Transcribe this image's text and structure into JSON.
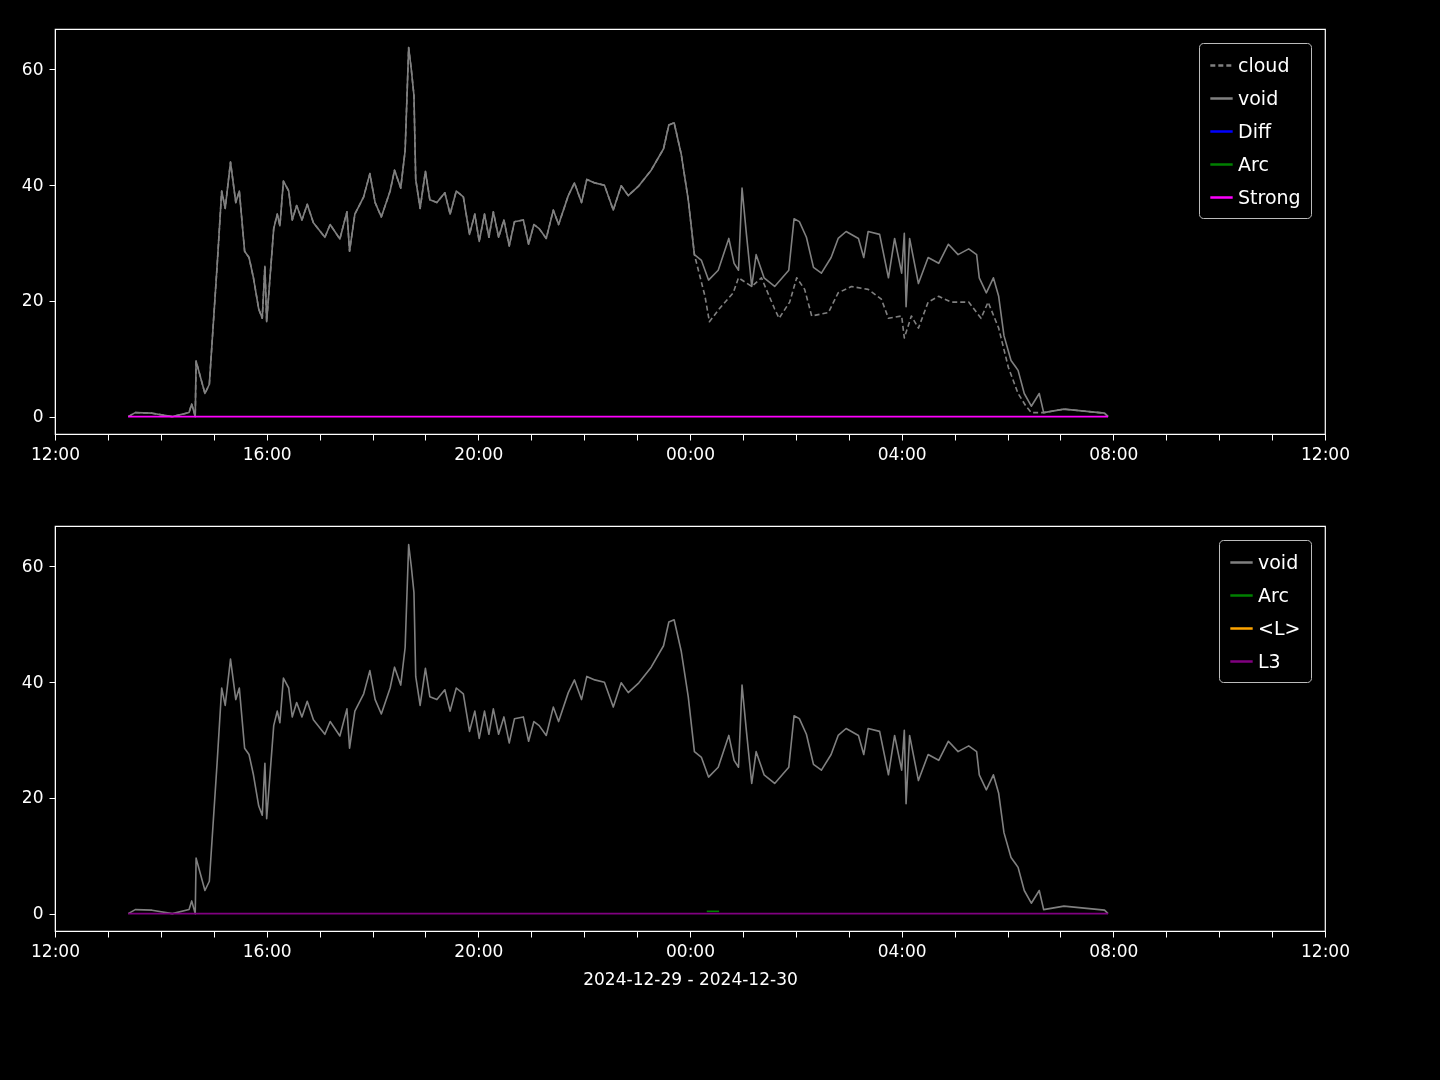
{
  "chart_data": [
    {
      "type": "line",
      "legend": "top right",
      "ylim": [
        -3,
        67
      ],
      "yticks": [
        0,
        20,
        40,
        60
      ],
      "xlim": [
        "2024-12-29T12:00",
        "2024-12-30T12:00"
      ],
      "xticks": [
        {
          "value": "2024-12-29T12:00",
          "label": "12:00"
        },
        {
          "value": "2024-12-29T13:00",
          "label": null
        },
        {
          "value": "2024-12-29T14:00",
          "label": null
        },
        {
          "value": "2024-12-29T15:00",
          "label": null
        },
        {
          "value": "2024-12-29T16:00",
          "label": "16:00"
        },
        {
          "value": "2024-12-29T17:00",
          "label": null
        },
        {
          "value": "2024-12-29T18:00",
          "label": null
        },
        {
          "value": "2024-12-29T19:00",
          "label": null
        },
        {
          "value": "2024-12-29T20:00",
          "label": "20:00"
        },
        {
          "value": "2024-12-29T21:00",
          "label": null
        },
        {
          "value": "2024-12-29T22:00",
          "label": null
        },
        {
          "value": "2024-12-29T23:00",
          "label": null
        },
        {
          "value": "2024-12-30T00:00",
          "label": "00:00"
        },
        {
          "value": "2024-12-30T01:00",
          "label": null
        },
        {
          "value": "2024-12-30T02:00",
          "label": null
        },
        {
          "value": "2024-12-30T03:00",
          "label": null
        },
        {
          "value": "2024-12-30T04:00",
          "label": "04:00"
        },
        {
          "value": "2024-12-30T05:00",
          "label": null
        },
        {
          "value": "2024-12-30T06:00",
          "label": null
        },
        {
          "value": "2024-12-30T07:00",
          "label": null
        },
        {
          "value": "2024-12-30T08:00",
          "label": "08:00"
        },
        {
          "value": "2024-12-30T09:00",
          "label": null
        },
        {
          "value": "2024-12-30T10:00",
          "label": null
        },
        {
          "value": "2024-12-30T11:00",
          "label": null
        },
        {
          "value": "2024-12-30T12:00",
          "label": "12:00"
        }
      ],
      "series": [
        {
          "name": "cloud",
          "color": "#808080",
          "line_style": "dashed",
          "x": [
            "2024-12-29T13:23",
            "2024-12-29T13:31",
            "2024-12-29T13:50",
            "2024-12-29T14:13",
            "2024-12-29T14:32",
            "2024-12-29T14:35",
            "2024-12-29T14:39",
            "2024-12-29T14:40",
            "2024-12-29T14:50",
            "2024-12-29T14:55",
            "2024-12-29T15:04",
            "2024-12-29T15:09",
            "2024-12-29T15:13",
            "2024-12-29T15:19",
            "2024-12-29T15:25",
            "2024-12-29T15:29",
            "2024-12-29T15:35",
            "2024-12-29T15:40",
            "2024-12-29T15:45",
            "2024-12-29T15:51",
            "2024-12-29T15:55",
            "2024-12-29T15:58",
            "2024-12-29T16:00",
            "2024-12-29T16:08",
            "2024-12-29T16:12",
            "2024-12-29T16:15",
            "2024-12-29T16:19",
            "2024-12-29T16:25",
            "2024-12-29T16:29",
            "2024-12-29T16:34",
            "2024-12-29T16:40",
            "2024-12-29T16:46",
            "2024-12-29T16:53",
            "2024-12-29T17:06",
            "2024-12-29T17:12",
            "2024-12-29T17:23",
            "2024-12-29T17:31",
            "2024-12-29T17:34",
            "2024-12-29T17:40",
            "2024-12-29T17:50",
            "2024-12-29T17:57",
            "2024-12-29T18:03",
            "2024-12-29T18:10",
            "2024-12-29T18:20",
            "2024-12-29T18:25",
            "2024-12-29T18:32",
            "2024-12-29T18:37",
            "2024-12-29T18:41",
            "2024-12-29T18:44",
            "2024-12-29T18:47",
            "2024-12-29T18:49",
            "2024-12-29T18:54",
            "2024-12-29T19:00",
            "2024-12-29T19:05",
            "2024-12-29T19:13",
            "2024-12-29T19:22",
            "2024-12-29T19:28",
            "2024-12-29T19:35",
            "2024-12-29T19:43",
            "2024-12-29T19:50",
            "2024-12-29T19:56",
            "2024-12-29T20:01",
            "2024-12-29T20:07",
            "2024-12-29T20:12",
            "2024-12-29T20:17",
            "2024-12-29T20:23",
            "2024-12-29T20:29",
            "2024-12-29T20:35",
            "2024-12-29T20:41",
            "2024-12-29T20:51",
            "2024-12-29T20:57",
            "2024-12-29T21:03",
            "2024-12-29T21:09",
            "2024-12-29T21:17",
            "2024-12-29T21:25",
            "2024-12-29T21:31",
            "2024-12-29T21:42",
            "2024-12-29T21:49",
            "2024-12-29T21:57",
            "2024-12-29T22:03",
            "2024-12-29T22:12",
            "2024-12-29T22:23",
            "2024-12-29T22:33",
            "2024-12-29T22:42",
            "2024-12-29T22:50",
            "2024-12-29T23:02",
            "2024-12-29T23:16",
            "2024-12-29T23:30",
            "2024-12-29T23:36",
            "2024-12-29T23:42",
            "2024-12-29T23:50",
            "2024-12-29T23:58",
            "2024-12-30T00:05",
            "2024-12-30T00:17",
            "2024-12-30T00:22",
            "2024-12-30T00:33",
            "2024-12-30T00:49",
            "2024-12-30T00:55",
            "2024-12-30T01:10",
            "2024-12-30T01:21",
            "2024-12-30T01:36",
            "2024-12-30T01:41",
            "2024-12-30T01:53",
            "2024-12-30T02:01",
            "2024-12-30T02:10",
            "2024-12-30T02:18",
            "2024-12-30T02:37",
            "2024-12-30T02:48",
            "2024-12-30T03:03",
            "2024-12-30T03:22",
            "2024-12-30T03:37",
            "2024-12-30T03:45",
            "2024-12-30T04:00",
            "2024-12-30T04:03",
            "2024-12-30T04:11",
            "2024-12-30T04:19",
            "2024-12-30T04:30",
            "2024-12-30T04:42",
            "2024-12-30T04:56",
            "2024-12-30T05:16",
            "2024-12-30T05:30",
            "2024-12-30T05:38",
            "2024-12-30T05:50",
            "2024-12-30T06:01",
            "2024-12-30T06:12",
            "2024-12-30T06:21",
            "2024-12-30T06:27",
            "2024-12-30T06:41",
            "2024-12-30T07:04",
            "2024-12-30T07:50",
            "2024-12-30T07:54"
          ],
          "values": [
            0,
            0.7,
            0.6,
            0,
            0.7,
            2.2,
            0,
            9.6,
            4,
            5.6,
            26.5,
            39,
            36,
            44,
            37,
            39,
            28.6,
            27.5,
            24,
            18.6,
            17,
            26,
            16.4,
            32.5,
            35,
            33,
            40.7,
            39,
            34,
            36.5,
            34,
            36.7,
            33.5,
            31,
            33.2,
            30.7,
            35.4,
            28.6,
            35,
            38,
            42,
            37,
            34.5,
            39,
            42.6,
            39.5,
            46,
            63.8,
            60,
            55.5,
            41,
            36,
            42.4,
            37.5,
            37,
            38.7,
            35,
            39,
            38,
            31.5,
            35,
            30.3,
            35,
            31,
            35.4,
            31,
            34,
            29.5,
            33.7,
            34,
            29.8,
            33.2,
            32.5,
            30.8,
            35.7,
            33.2,
            38.2,
            40.4,
            37,
            41,
            40.4,
            40,
            35.7,
            39.9,
            38.2,
            39.9,
            42.6,
            46.3,
            50.4,
            50.8,
            45.4,
            37.5,
            28,
            20.8,
            16.4,
            18.6,
            21.4,
            24,
            22.5,
            24,
            18.6,
            17,
            19.8,
            24,
            22,
            17.4,
            18,
            21.4,
            22.5,
            22,
            20.3,
            17,
            17.4,
            13.6,
            17.4,
            15.3,
            19.8,
            20.8,
            19.8,
            19.8,
            17,
            19.8,
            15.3,
            8.5,
            4,
            1.8,
            0.7,
            0.7,
            1.3,
            0.6,
            0
          ]
        },
        {
          "name": "void",
          "color": "#808080",
          "x": [
            "2024-12-29T13:23",
            "2024-12-29T13:31",
            "2024-12-29T13:50",
            "2024-12-29T14:13",
            "2024-12-29T14:32",
            "2024-12-29T14:35",
            "2024-12-29T14:39",
            "2024-12-29T14:40",
            "2024-12-29T14:50",
            "2024-12-29T14:55",
            "2024-12-29T15:04",
            "2024-12-29T15:09",
            "2024-12-29T15:13",
            "2024-12-29T15:19",
            "2024-12-29T15:25",
            "2024-12-29T15:29",
            "2024-12-29T15:35",
            "2024-12-29T15:40",
            "2024-12-29T15:45",
            "2024-12-29T15:51",
            "2024-12-29T15:55",
            "2024-12-29T15:58",
            "2024-12-29T16:00",
            "2024-12-29T16:08",
            "2024-12-29T16:12",
            "2024-12-29T16:15",
            "2024-12-29T16:19",
            "2024-12-29T16:25",
            "2024-12-29T16:29",
            "2024-12-29T16:34",
            "2024-12-29T16:40",
            "2024-12-29T16:46",
            "2024-12-29T16:53",
            "2024-12-29T17:06",
            "2024-12-29T17:12",
            "2024-12-29T17:23",
            "2024-12-29T17:31",
            "2024-12-29T17:34",
            "2024-12-29T17:40",
            "2024-12-29T17:50",
            "2024-12-29T17:57",
            "2024-12-29T18:03",
            "2024-12-29T18:10",
            "2024-12-29T18:20",
            "2024-12-29T18:25",
            "2024-12-29T18:32",
            "2024-12-29T18:37",
            "2024-12-29T18:41",
            "2024-12-29T18:44",
            "2024-12-29T18:47",
            "2024-12-29T18:49",
            "2024-12-29T18:54",
            "2024-12-29T19:00",
            "2024-12-29T19:05",
            "2024-12-29T19:13",
            "2024-12-29T19:22",
            "2024-12-29T19:28",
            "2024-12-29T19:35",
            "2024-12-29T19:43",
            "2024-12-29T19:50",
            "2024-12-29T19:56",
            "2024-12-29T20:01",
            "2024-12-29T20:07",
            "2024-12-29T20:12",
            "2024-12-29T20:17",
            "2024-12-29T20:23",
            "2024-12-29T20:29",
            "2024-12-29T20:35",
            "2024-12-29T20:41",
            "2024-12-29T20:51",
            "2024-12-29T20:57",
            "2024-12-29T21:03",
            "2024-12-29T21:09",
            "2024-12-29T21:17",
            "2024-12-29T21:25",
            "2024-12-29T21:31",
            "2024-12-29T21:42",
            "2024-12-29T21:49",
            "2024-12-29T21:57",
            "2024-12-29T22:03",
            "2024-12-29T22:12",
            "2024-12-29T22:23",
            "2024-12-29T22:33",
            "2024-12-29T22:42",
            "2024-12-29T22:50",
            "2024-12-29T23:02",
            "2024-12-29T23:16",
            "2024-12-29T23:30",
            "2024-12-29T23:36",
            "2024-12-29T23:42",
            "2024-12-29T23:50",
            "2024-12-29T23:58",
            "2024-12-30T00:05",
            "2024-12-30T00:13",
            "2024-12-30T00:21",
            "2024-12-30T00:32",
            "2024-12-30T00:44",
            "2024-12-30T00:50",
            "2024-12-30T00:55",
            "2024-12-30T00:59",
            "2024-12-30T01:04",
            "2024-12-30T01:10",
            "2024-12-30T01:15",
            "2024-12-30T01:24",
            "2024-12-30T01:36",
            "2024-12-30T01:52",
            "2024-12-30T01:58",
            "2024-12-30T02:04",
            "2024-12-30T02:12",
            "2024-12-30T02:20",
            "2024-12-30T02:29",
            "2024-12-30T02:40",
            "2024-12-30T02:48",
            "2024-12-30T02:57",
            "2024-12-30T03:11",
            "2024-12-30T03:17",
            "2024-12-30T03:22",
            "2024-12-30T03:35",
            "2024-12-30T03:45",
            "2024-12-30T03:52",
            "2024-12-30T04:00",
            "2024-12-30T04:03",
            "2024-12-30T04:05",
            "2024-12-30T04:09",
            "2024-12-30T04:19",
            "2024-12-30T04:30",
            "2024-12-30T04:42",
            "2024-12-30T04:53",
            "2024-12-30T05:04",
            "2024-12-30T05:16",
            "2024-12-30T05:25",
            "2024-12-30T05:28",
            "2024-12-30T05:36",
            "2024-12-30T05:44",
            "2024-12-30T05:50",
            "2024-12-30T05:56",
            "2024-12-30T06:04",
            "2024-12-30T06:12",
            "2024-12-30T06:19",
            "2024-12-30T06:27",
            "2024-12-30T06:36",
            "2024-12-30T06:41",
            "2024-12-30T07:04",
            "2024-12-30T07:50",
            "2024-12-30T07:54"
          ],
          "values": [
            0,
            0.7,
            0.6,
            0,
            0.7,
            2.2,
            0,
            9.6,
            4,
            5.6,
            26.5,
            39,
            36,
            44,
            37,
            39,
            28.6,
            27.5,
            24,
            18.6,
            17,
            26,
            16.4,
            32.5,
            35,
            33,
            40.7,
            39,
            34,
            36.5,
            34,
            36.7,
            33.5,
            31,
            33.2,
            30.7,
            35.4,
            28.6,
            35,
            38,
            42,
            37,
            34.5,
            39,
            42.6,
            39.5,
            46,
            63.8,
            60,
            55.5,
            41,
            36,
            42.4,
            37.5,
            37,
            38.7,
            35,
            39,
            38,
            31.5,
            35,
            30.3,
            35,
            31,
            35.4,
            31,
            34,
            29.5,
            33.7,
            34,
            29.8,
            33.2,
            32.5,
            30.8,
            35.7,
            33.2,
            38.2,
            40.4,
            37,
            41,
            40.4,
            40,
            35.7,
            39.9,
            38.2,
            39.9,
            42.6,
            46.3,
            50.4,
            50.8,
            45.4,
            37.5,
            28,
            27,
            23.6,
            25.3,
            30.8,
            26.5,
            25.3,
            39.5,
            31.5,
            22.5,
            28,
            24,
            22.5,
            25.3,
            34.2,
            33.7,
            31,
            25.8,
            24.8,
            27.5,
            30.8,
            32,
            30.8,
            27.5,
            32,
            31.5,
            24,
            30.8,
            24.8,
            31.7,
            19,
            30.8,
            23,
            27.5,
            26.5,
            29.8,
            28,
            29,
            28,
            24,
            21.4,
            24,
            20.8,
            14,
            9.7,
            8,
            4,
            1.8,
            4,
            0.7,
            1.3,
            0.6,
            0
          ]
        },
        {
          "name": "Diff",
          "color": "#0000ff"
        },
        {
          "name": "Arc",
          "color": "#008000"
        },
        {
          "name": "Strong",
          "color": "#ff00ff",
          "x": [
            "2024-12-29T13:23",
            "2024-12-30T07:54"
          ],
          "values": [
            0,
            0
          ]
        }
      ]
    },
    {
      "type": "line",
      "legend": "top right",
      "xlabel": "2024-12-29 - 2024-12-30",
      "ylim": [
        -3,
        67
      ],
      "yticks": [
        0,
        20,
        40,
        60
      ],
      "xlim": [
        "2024-12-29T12:00",
        "2024-12-30T12:00"
      ],
      "xticks": [
        {
          "value": "2024-12-29T12:00",
          "label": "12:00"
        },
        {
          "value": "2024-12-29T13:00",
          "label": null
        },
        {
          "value": "2024-12-29T14:00",
          "label": null
        },
        {
          "value": "2024-12-29T15:00",
          "label": null
        },
        {
          "value": "2024-12-29T16:00",
          "label": "16:00"
        },
        {
          "value": "2024-12-29T17:00",
          "label": null
        },
        {
          "value": "2024-12-29T18:00",
          "label": null
        },
        {
          "value": "2024-12-29T19:00",
          "label": null
        },
        {
          "value": "2024-12-29T20:00",
          "label": "20:00"
        },
        {
          "value": "2024-12-29T21:00",
          "label": null
        },
        {
          "value": "2024-12-29T22:00",
          "label": null
        },
        {
          "value": "2024-12-29T23:00",
          "label": null
        },
        {
          "value": "2024-12-30T00:00",
          "label": "00:00"
        },
        {
          "value": "2024-12-30T01:00",
          "label": null
        },
        {
          "value": "2024-12-30T02:00",
          "label": null
        },
        {
          "value": "2024-12-30T03:00",
          "label": null
        },
        {
          "value": "2024-12-30T04:00",
          "label": "04:00"
        },
        {
          "value": "2024-12-30T05:00",
          "label": null
        },
        {
          "value": "2024-12-30T06:00",
          "label": null
        },
        {
          "value": "2024-12-30T07:00",
          "label": null
        },
        {
          "value": "2024-12-30T08:00",
          "label": "08:00"
        },
        {
          "value": "2024-12-30T09:00",
          "label": null
        },
        {
          "value": "2024-12-30T10:00",
          "label": null
        },
        {
          "value": "2024-12-30T11:00",
          "label": null
        },
        {
          "value": "2024-12-30T12:00",
          "label": "12:00"
        }
      ],
      "series": [
        {
          "name": "void",
          "color": "#808080",
          "x": [
            "2024-12-29T13:23",
            "2024-12-29T13:31",
            "2024-12-29T13:50",
            "2024-12-29T14:13",
            "2024-12-29T14:32",
            "2024-12-29T14:35",
            "2024-12-29T14:39",
            "2024-12-29T14:40",
            "2024-12-29T14:50",
            "2024-12-29T14:55",
            "2024-12-29T15:04",
            "2024-12-29T15:09",
            "2024-12-29T15:13",
            "2024-12-29T15:19",
            "2024-12-29T15:25",
            "2024-12-29T15:29",
            "2024-12-29T15:35",
            "2024-12-29T15:40",
            "2024-12-29T15:45",
            "2024-12-29T15:51",
            "2024-12-29T15:55",
            "2024-12-29T15:58",
            "2024-12-29T16:00",
            "2024-12-29T16:08",
            "2024-12-29T16:12",
            "2024-12-29T16:15",
            "2024-12-29T16:19",
            "2024-12-29T16:25",
            "2024-12-29T16:29",
            "2024-12-29T16:34",
            "2024-12-29T16:40",
            "2024-12-29T16:46",
            "2024-12-29T16:53",
            "2024-12-29T17:06",
            "2024-12-29T17:12",
            "2024-12-29T17:23",
            "2024-12-29T17:31",
            "2024-12-29T17:34",
            "2024-12-29T17:40",
            "2024-12-29T17:50",
            "2024-12-29T17:57",
            "2024-12-29T18:03",
            "2024-12-29T18:10",
            "2024-12-29T18:20",
            "2024-12-29T18:25",
            "2024-12-29T18:32",
            "2024-12-29T18:37",
            "2024-12-29T18:41",
            "2024-12-29T18:44",
            "2024-12-29T18:47",
            "2024-12-29T18:49",
            "2024-12-29T18:54",
            "2024-12-29T19:00",
            "2024-12-29T19:05",
            "2024-12-29T19:13",
            "2024-12-29T19:22",
            "2024-12-29T19:28",
            "2024-12-29T19:35",
            "2024-12-29T19:43",
            "2024-12-29T19:50",
            "2024-12-29T19:56",
            "2024-12-29T20:01",
            "2024-12-29T20:07",
            "2024-12-29T20:12",
            "2024-12-29T20:17",
            "2024-12-29T20:23",
            "2024-12-29T20:29",
            "2024-12-29T20:35",
            "2024-12-29T20:41",
            "2024-12-29T20:51",
            "2024-12-29T20:57",
            "2024-12-29T21:03",
            "2024-12-29T21:09",
            "2024-12-29T21:17",
            "2024-12-29T21:25",
            "2024-12-29T21:31",
            "2024-12-29T21:42",
            "2024-12-29T21:49",
            "2024-12-29T21:57",
            "2024-12-29T22:03",
            "2024-12-29T22:12",
            "2024-12-29T22:23",
            "2024-12-29T22:33",
            "2024-12-29T22:42",
            "2024-12-29T22:50",
            "2024-12-29T23:02",
            "2024-12-29T23:16",
            "2024-12-29T23:30",
            "2024-12-29T23:36",
            "2024-12-29T23:42",
            "2024-12-29T23:50",
            "2024-12-29T23:58",
            "2024-12-30T00:05",
            "2024-12-30T00:13",
            "2024-12-30T00:21",
            "2024-12-30T00:32",
            "2024-12-30T00:44",
            "2024-12-30T00:50",
            "2024-12-30T00:55",
            "2024-12-30T00:59",
            "2024-12-30T01:04",
            "2024-12-30T01:10",
            "2024-12-30T01:15",
            "2024-12-30T01:24",
            "2024-12-30T01:36",
            "2024-12-30T01:52",
            "2024-12-30T01:58",
            "2024-12-30T02:04",
            "2024-12-30T02:12",
            "2024-12-30T02:20",
            "2024-12-30T02:29",
            "2024-12-30T02:40",
            "2024-12-30T02:48",
            "2024-12-30T02:57",
            "2024-12-30T03:11",
            "2024-12-30T03:17",
            "2024-12-30T03:22",
            "2024-12-30T03:35",
            "2024-12-30T03:45",
            "2024-12-30T03:52",
            "2024-12-30T04:00",
            "2024-12-30T04:03",
            "2024-12-30T04:05",
            "2024-12-30T04:09",
            "2024-12-30T04:19",
            "2024-12-30T04:30",
            "2024-12-30T04:42",
            "2024-12-30T04:53",
            "2024-12-30T05:04",
            "2024-12-30T05:16",
            "2024-12-30T05:25",
            "2024-12-30T05:28",
            "2024-12-30T05:36",
            "2024-12-30T05:44",
            "2024-12-30T05:50",
            "2024-12-30T05:56",
            "2024-12-30T06:04",
            "2024-12-30T06:12",
            "2024-12-30T06:19",
            "2024-12-30T06:27",
            "2024-12-30T06:36",
            "2024-12-30T06:41",
            "2024-12-30T07:04",
            "2024-12-30T07:50",
            "2024-12-30T07:54"
          ],
          "values": [
            0,
            0.7,
            0.6,
            0,
            0.7,
            2.2,
            0,
            9.6,
            4,
            5.6,
            26.5,
            39,
            36,
            44,
            37,
            39,
            28.6,
            27.5,
            24,
            18.6,
            17,
            26,
            16.4,
            32.5,
            35,
            33,
            40.7,
            39,
            34,
            36.5,
            34,
            36.7,
            33.5,
            31,
            33.2,
            30.7,
            35.4,
            28.6,
            35,
            38,
            42,
            37,
            34.5,
            39,
            42.6,
            39.5,
            46,
            63.8,
            60,
            55.5,
            41,
            36,
            42.4,
            37.5,
            37,
            38.7,
            35,
            39,
            38,
            31.5,
            35,
            30.3,
            35,
            31,
            35.4,
            31,
            34,
            29.5,
            33.7,
            34,
            29.8,
            33.2,
            32.5,
            30.8,
            35.7,
            33.2,
            38.2,
            40.4,
            37,
            41,
            40.4,
            40,
            35.7,
            39.9,
            38.2,
            39.9,
            42.6,
            46.3,
            50.4,
            50.8,
            45.4,
            37.5,
            28,
            27,
            23.6,
            25.3,
            30.8,
            26.5,
            25.3,
            39.5,
            31.5,
            22.5,
            28,
            24,
            22.5,
            25.3,
            34.2,
            33.7,
            31,
            25.8,
            24.8,
            27.5,
            30.8,
            32,
            30.8,
            27.5,
            32,
            31.5,
            24,
            30.8,
            24.8,
            31.7,
            19,
            30.8,
            23,
            27.5,
            26.5,
            29.8,
            28,
            29,
            28,
            24,
            21.4,
            24,
            20.8,
            14,
            9.7,
            8,
            4,
            1.8,
            4,
            0.7,
            1.3,
            0.6,
            0
          ]
        },
        {
          "name": "Arc",
          "color": "#008000",
          "x": [
            "2024-12-30T00:19",
            "2024-12-30T00:33"
          ],
          "values": [
            0.4,
            0.4
          ]
        },
        {
          "name": "<L>",
          "color": "#ffa500"
        },
        {
          "name": "L3",
          "color": "#800080",
          "x": [
            "2024-12-29T13:23",
            "2024-12-30T07:54"
          ],
          "values": [
            0,
            0
          ]
        }
      ]
    }
  ]
}
